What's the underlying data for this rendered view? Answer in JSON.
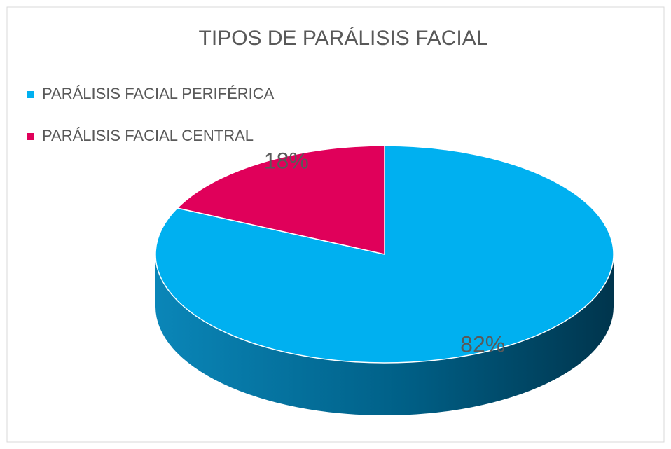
{
  "chart_data": {
    "type": "pie",
    "title": "TIPOS DE PARÁLISIS FACIAL",
    "categories": [
      "PARÁLISIS FACIAL PERIFÉRICA",
      "PARÁLISIS FACIAL CENTRAL"
    ],
    "values": [
      82,
      18
    ],
    "value_labels": [
      "82%",
      "18%"
    ],
    "colors": [
      "#00b0f0",
      "#e0005a"
    ],
    "legend": "top-left"
  }
}
